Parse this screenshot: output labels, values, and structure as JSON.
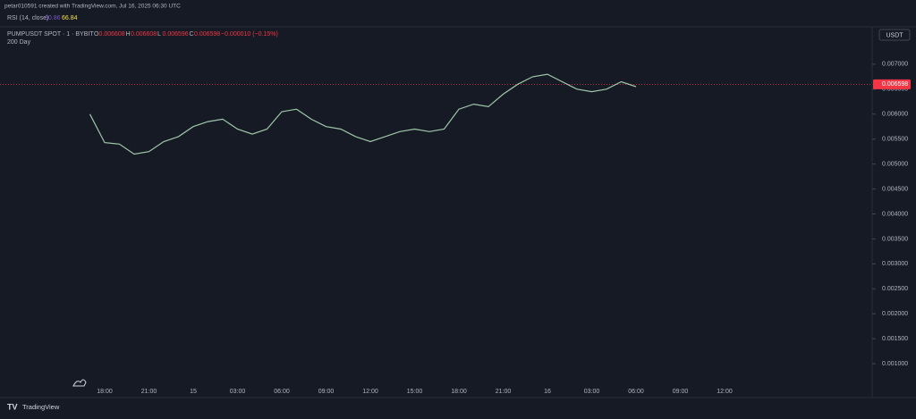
{
  "chart_data": {
    "type": "line",
    "header": "petar010591 created with TradingView.com, Jul 16, 2025 06:30 UTC",
    "rsi_label": "RSI (14, close)",
    "rsi_values": [
      "60.86",
      "66.84"
    ],
    "title": "PUMPUSDT SPOT · 1 · BYBIT",
    "ohlc": [
      {
        "label": "O",
        "value": "0.006608"
      },
      {
        "label": "H",
        "value": "0.006608"
      },
      {
        "label": "L",
        "value": "0.006596"
      },
      {
        "label": "C",
        "value": "0.006598"
      }
    ],
    "change": "−0.000010 (−0.15%)",
    "subtitle": "200 Day",
    "currency": "USDT",
    "last_price": 0.006598,
    "last_price_label": "0.006598",
    "footer": "TradingView",
    "categories": [
      null,
      "18:00",
      null,
      null,
      "21:00",
      null,
      null,
      "15",
      null,
      null,
      "03:00",
      null,
      null,
      "06:00",
      null,
      null,
      "09:00",
      null,
      null,
      "12:00",
      null,
      null,
      "15:00",
      null,
      null,
      "18:00",
      null,
      null,
      "21:00",
      null,
      null,
      "16",
      null,
      null,
      "03:00",
      null,
      null,
      "06:00",
      null,
      null,
      "09:00",
      null,
      null,
      "12:00"
    ],
    "series": [
      {
        "name": "PUMPUSDT",
        "color": "#9fc7a8",
        "values": [
          0.006,
          0.00543,
          0.0054,
          0.0052,
          0.00525,
          0.00545,
          0.00555,
          0.00575,
          0.00585,
          0.0059,
          0.0057,
          0.0056,
          0.0057,
          0.00605,
          0.0061,
          0.0059,
          0.00575,
          0.0057,
          0.00555,
          0.00545,
          0.00555,
          0.00565,
          0.0057,
          0.00565,
          0.0057,
          0.0061,
          0.0062,
          0.00615,
          0.0064,
          0.0066,
          0.00675,
          0.0068,
          0.00665,
          0.0065,
          0.00645,
          0.0065,
          0.00665,
          0.00655,
          null,
          null,
          null,
          null,
          null,
          null
        ]
      }
    ],
    "ylim": [
      0.00059,
      0.00775
    ],
    "yticks": [
      {
        "value": 0.001,
        "label": "0.001000"
      },
      {
        "value": 0.0015,
        "label": "0.001500"
      },
      {
        "value": 0.002,
        "label": "0.002000"
      },
      {
        "value": 0.0025,
        "label": "0.002500"
      },
      {
        "value": 0.003,
        "label": "0.003000"
      },
      {
        "value": 0.0035,
        "label": "0.003500"
      },
      {
        "value": 0.004,
        "label": "0.004000"
      },
      {
        "value": 0.0045,
        "label": "0.004500"
      },
      {
        "value": 0.005,
        "label": "0.005000"
      },
      {
        "value": 0.0055,
        "label": "0.005500"
      },
      {
        "value": 0.006,
        "label": "0.006000"
      },
      {
        "value": 0.0065,
        "label": "0.006500"
      },
      {
        "value": 0.007,
        "label": "0.007000"
      }
    ],
    "last_price_color": "#f23645",
    "grid": false
  }
}
